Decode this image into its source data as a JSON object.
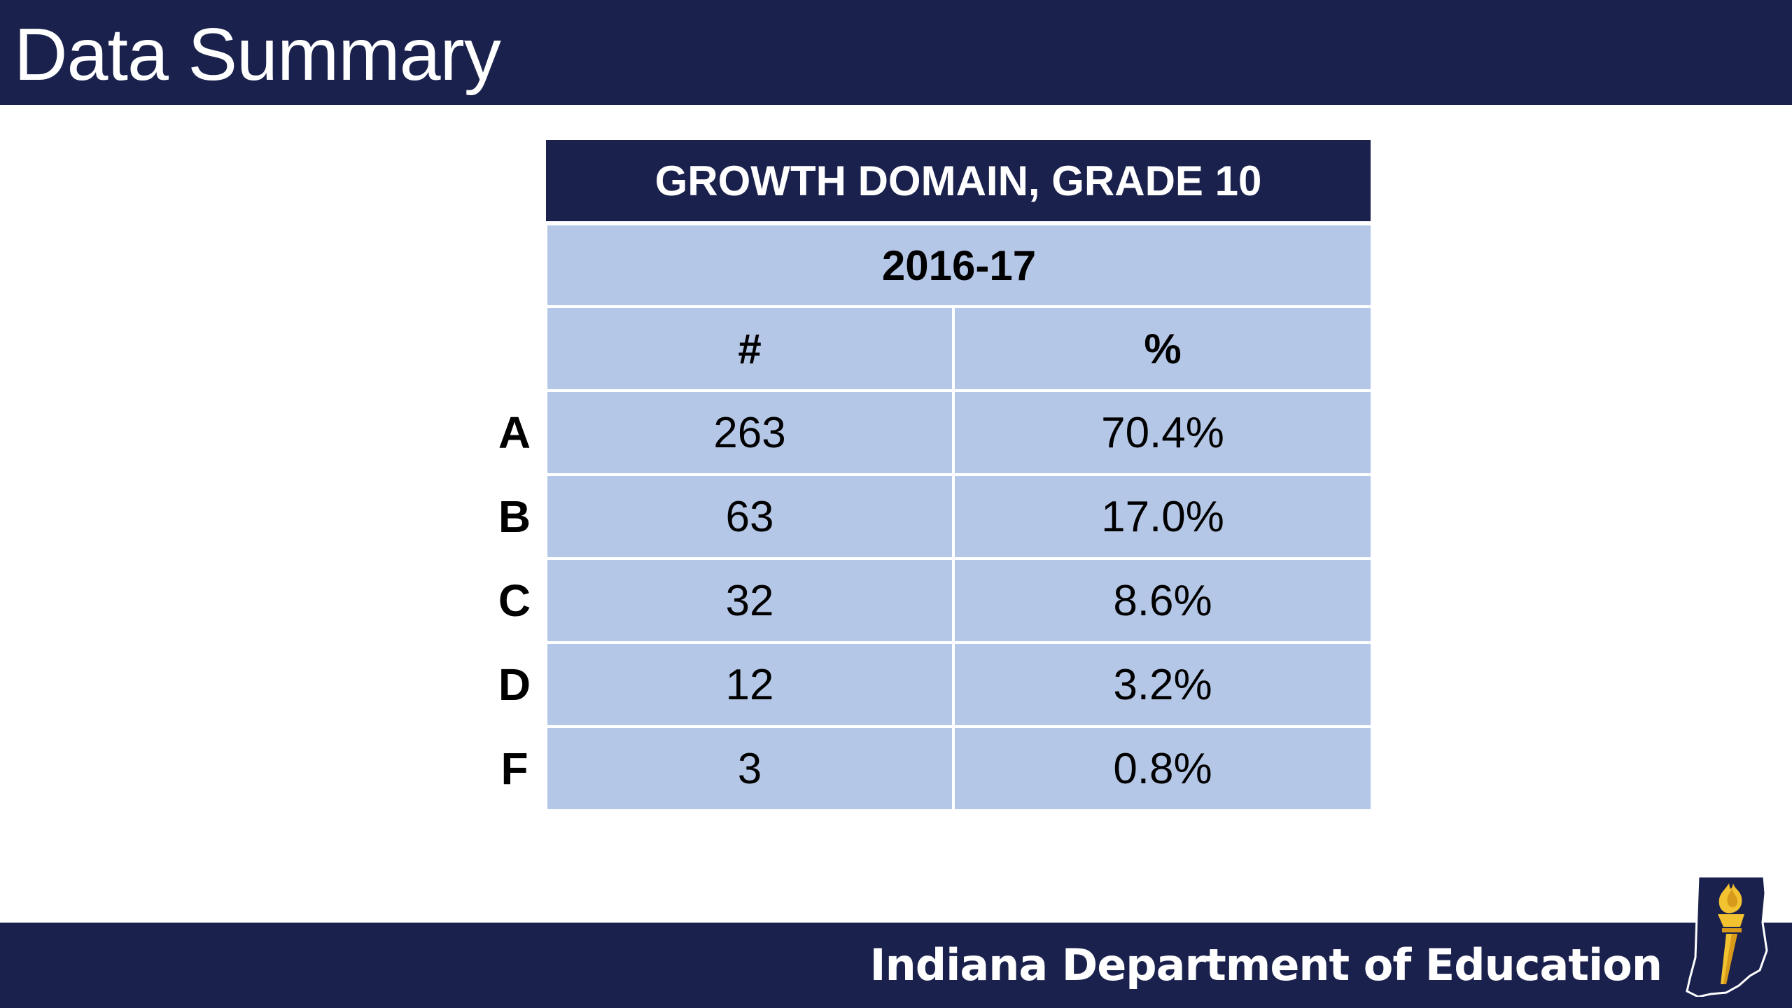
{
  "slide": {
    "title": "Data Summary"
  },
  "table": {
    "title": "GROWTH DOMAIN, GRADE 10",
    "year": "2016-17",
    "columns": [
      "#",
      "%"
    ],
    "rows": [
      {
        "grade": "A",
        "count": "263",
        "percent": "70.4%"
      },
      {
        "grade": "B",
        "count": "63",
        "percent": "17.0%"
      },
      {
        "grade": "C",
        "count": "32",
        "percent": "8.6%"
      },
      {
        "grade": "D",
        "count": "12",
        "percent": "3.2%"
      },
      {
        "grade": "F",
        "count": "3",
        "percent": "0.8%"
      }
    ]
  },
  "footer": {
    "organization": "Indiana Department of Education",
    "logo_icon": "torch-indiana-logo-icon"
  },
  "colors": {
    "navy": "#1a214c",
    "cell_blue": "#b5c7e7",
    "torch_gold": "#f2c230"
  }
}
